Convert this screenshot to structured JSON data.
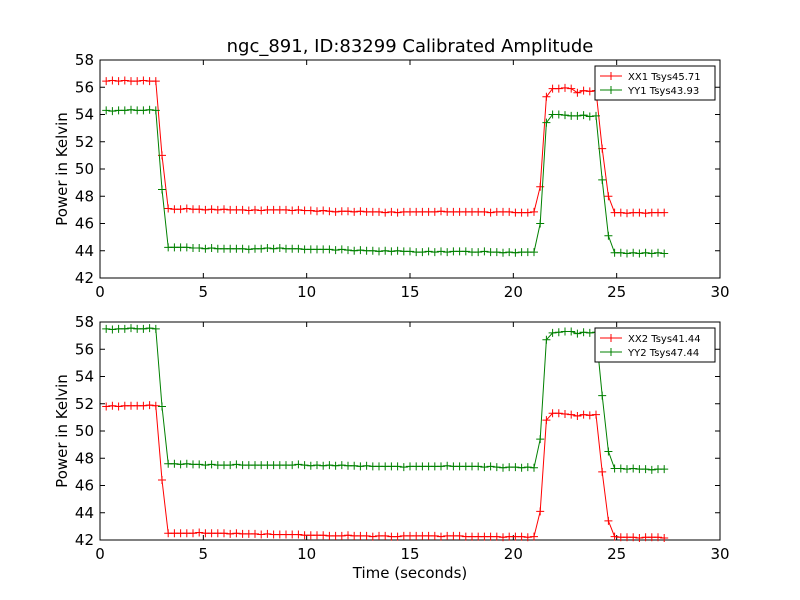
{
  "chart_data": [
    {
      "type": "line",
      "title": "ngc_891, ID:83299 Calibrated Amplitude",
      "xlabel": "",
      "ylabel": "Power in Kelvin",
      "xlim": [
        0,
        30
      ],
      "ylim": [
        42,
        58
      ],
      "xticks": [
        0,
        5,
        10,
        15,
        20,
        25,
        30
      ],
      "yticks": [
        42,
        44,
        46,
        48,
        50,
        52,
        54,
        56,
        58
      ],
      "grid": false,
      "legend_position": "top-right",
      "series": [
        {
          "name": "XX1 Tsys45.71",
          "color": "#ff0000",
          "x": [
            0.3,
            0.6,
            0.9,
            1.2,
            1.5,
            1.8,
            2.1,
            2.4,
            2.7,
            3.0,
            3.3,
            3.6,
            3.9,
            4.2,
            4.5,
            4.8,
            5.1,
            5.4,
            5.7,
            6.0,
            6.3,
            6.6,
            6.9,
            7.2,
            7.5,
            7.8,
            8.1,
            8.4,
            8.7,
            9.0,
            9.3,
            9.6,
            9.9,
            10.2,
            10.5,
            10.8,
            11.1,
            11.4,
            11.7,
            12.0,
            12.3,
            12.6,
            12.9,
            13.2,
            13.5,
            13.8,
            14.1,
            14.4,
            14.7,
            15.0,
            15.3,
            15.6,
            15.9,
            16.2,
            16.5,
            16.8,
            17.1,
            17.4,
            17.7,
            18.0,
            18.3,
            18.6,
            18.9,
            19.2,
            19.5,
            19.8,
            20.1,
            20.4,
            20.7,
            21.0,
            21.3,
            21.6,
            21.9,
            22.2,
            22.5,
            22.8,
            23.1,
            23.4,
            23.7,
            24.0,
            24.3,
            24.6,
            24.9,
            25.2,
            25.5,
            25.8,
            26.1,
            26.4,
            26.7,
            27.0,
            27.3
          ],
          "values": [
            56.45,
            56.5,
            56.45,
            56.5,
            56.45,
            56.45,
            56.5,
            56.45,
            56.45,
            51.0,
            47.1,
            47.05,
            47.05,
            47.1,
            47.05,
            47.05,
            47.0,
            47.05,
            47.0,
            47.05,
            47.0,
            47.0,
            47.0,
            46.95,
            47.0,
            46.95,
            47.0,
            47.0,
            47.0,
            47.0,
            46.95,
            47.0,
            46.95,
            46.95,
            46.9,
            46.95,
            46.9,
            46.85,
            46.9,
            46.9,
            46.85,
            46.9,
            46.85,
            46.85,
            46.85,
            46.8,
            46.85,
            46.8,
            46.85,
            46.85,
            46.85,
            46.85,
            46.85,
            46.85,
            46.9,
            46.85,
            46.85,
            46.85,
            46.85,
            46.85,
            46.85,
            46.85,
            46.8,
            46.85,
            46.85,
            46.85,
            46.8,
            46.8,
            46.8,
            46.85,
            48.7,
            55.3,
            55.9,
            55.9,
            55.95,
            55.9,
            55.6,
            55.75,
            55.7,
            55.75,
            51.5,
            48.0,
            46.8,
            46.8,
            46.75,
            46.8,
            46.8,
            46.75,
            46.8,
            46.8,
            46.8
          ]
        },
        {
          "name": "YY1 Tsys43.93",
          "color": "#008000",
          "x": [
            0.3,
            0.6,
            0.9,
            1.2,
            1.5,
            1.8,
            2.1,
            2.4,
            2.7,
            3.0,
            3.3,
            3.6,
            3.9,
            4.2,
            4.5,
            4.8,
            5.1,
            5.4,
            5.7,
            6.0,
            6.3,
            6.6,
            6.9,
            7.2,
            7.5,
            7.8,
            8.1,
            8.4,
            8.7,
            9.0,
            9.3,
            9.6,
            9.9,
            10.2,
            10.5,
            10.8,
            11.1,
            11.4,
            11.7,
            12.0,
            12.3,
            12.6,
            12.9,
            13.2,
            13.5,
            13.8,
            14.1,
            14.4,
            14.7,
            15.0,
            15.3,
            15.6,
            15.9,
            16.2,
            16.5,
            16.8,
            17.1,
            17.4,
            17.7,
            18.0,
            18.3,
            18.6,
            18.9,
            19.2,
            19.5,
            19.8,
            20.1,
            20.4,
            20.7,
            21.0,
            21.3,
            21.6,
            21.9,
            22.2,
            22.5,
            22.8,
            23.1,
            23.4,
            23.7,
            24.0,
            24.3,
            24.6,
            24.9,
            25.2,
            25.5,
            25.8,
            26.1,
            26.4,
            26.7,
            27.0,
            27.3
          ],
          "values": [
            54.3,
            54.25,
            54.3,
            54.3,
            54.35,
            54.3,
            54.3,
            54.35,
            54.3,
            48.5,
            44.25,
            44.25,
            44.25,
            44.25,
            44.2,
            44.2,
            44.15,
            44.2,
            44.15,
            44.15,
            44.15,
            44.15,
            44.15,
            44.1,
            44.15,
            44.15,
            44.2,
            44.15,
            44.2,
            44.15,
            44.15,
            44.15,
            44.1,
            44.1,
            44.1,
            44.1,
            44.1,
            44.05,
            44.1,
            44.05,
            44.0,
            44.05,
            44.0,
            44.0,
            43.95,
            44.0,
            43.95,
            44.0,
            43.95,
            43.95,
            43.9,
            43.9,
            43.95,
            43.9,
            43.95,
            43.9,
            43.95,
            43.95,
            43.95,
            43.9,
            43.9,
            43.95,
            43.9,
            43.9,
            43.85,
            43.9,
            43.85,
            43.9,
            43.9,
            43.9,
            46.0,
            53.4,
            54.0,
            54.0,
            53.95,
            53.9,
            53.9,
            53.95,
            53.85,
            53.9,
            49.2,
            45.1,
            43.85,
            43.85,
            43.8,
            43.85,
            43.8,
            43.85,
            43.8,
            43.85,
            43.8
          ]
        }
      ]
    },
    {
      "type": "line",
      "title": "",
      "xlabel": "Time (seconds)",
      "ylabel": "Power in Kelvin",
      "xlim": [
        0,
        30
      ],
      "ylim": [
        42,
        58
      ],
      "xticks": [
        0,
        5,
        10,
        15,
        20,
        25,
        30
      ],
      "yticks": [
        42,
        44,
        46,
        48,
        50,
        52,
        54,
        56,
        58
      ],
      "grid": false,
      "legend_position": "top-right",
      "series": [
        {
          "name": "XX2 Tsys41.44",
          "color": "#ff0000",
          "x": [
            0.3,
            0.6,
            0.9,
            1.2,
            1.5,
            1.8,
            2.1,
            2.4,
            2.7,
            3.0,
            3.3,
            3.6,
            3.9,
            4.2,
            4.5,
            4.8,
            5.1,
            5.4,
            5.7,
            6.0,
            6.3,
            6.6,
            6.9,
            7.2,
            7.5,
            7.8,
            8.1,
            8.4,
            8.7,
            9.0,
            9.3,
            9.6,
            9.9,
            10.2,
            10.5,
            10.8,
            11.1,
            11.4,
            11.7,
            12.0,
            12.3,
            12.6,
            12.9,
            13.2,
            13.5,
            13.8,
            14.1,
            14.4,
            14.7,
            15.0,
            15.3,
            15.6,
            15.9,
            16.2,
            16.5,
            16.8,
            17.1,
            17.4,
            17.7,
            18.0,
            18.3,
            18.6,
            18.9,
            19.2,
            19.5,
            19.8,
            20.1,
            20.4,
            20.7,
            21.0,
            21.3,
            21.6,
            21.9,
            22.2,
            22.5,
            22.8,
            23.1,
            23.4,
            23.7,
            24.0,
            24.3,
            24.6,
            24.9,
            25.2,
            25.5,
            25.8,
            26.1,
            26.4,
            26.7,
            27.0,
            27.3
          ],
          "values": [
            51.8,
            51.85,
            51.8,
            51.85,
            51.85,
            51.85,
            51.85,
            51.9,
            51.85,
            46.4,
            42.5,
            42.5,
            42.5,
            42.5,
            42.5,
            42.55,
            42.5,
            42.5,
            42.5,
            42.5,
            42.45,
            42.5,
            42.45,
            42.45,
            42.45,
            42.4,
            42.45,
            42.4,
            42.4,
            42.4,
            42.4,
            42.4,
            42.35,
            42.35,
            42.35,
            42.35,
            42.3,
            42.3,
            42.3,
            42.35,
            42.3,
            42.3,
            42.3,
            42.25,
            42.3,
            42.3,
            42.25,
            42.25,
            42.3,
            42.3,
            42.3,
            42.3,
            42.3,
            42.3,
            42.25,
            42.3,
            42.3,
            42.3,
            42.25,
            42.25,
            42.25,
            42.25,
            42.25,
            42.25,
            42.2,
            42.25,
            42.25,
            42.25,
            42.2,
            42.25,
            44.1,
            50.8,
            51.3,
            51.3,
            51.25,
            51.2,
            51.1,
            51.2,
            51.15,
            51.2,
            47.0,
            43.4,
            42.25,
            42.2,
            42.2,
            42.2,
            42.15,
            42.2,
            42.2,
            42.2,
            42.15
          ]
        },
        {
          "name": "YY2 Tsys47.44",
          "color": "#008000",
          "x": [
            0.3,
            0.6,
            0.9,
            1.2,
            1.5,
            1.8,
            2.1,
            2.4,
            2.7,
            3.0,
            3.3,
            3.6,
            3.9,
            4.2,
            4.5,
            4.8,
            5.1,
            5.4,
            5.7,
            6.0,
            6.3,
            6.6,
            6.9,
            7.2,
            7.5,
            7.8,
            8.1,
            8.4,
            8.7,
            9.0,
            9.3,
            9.6,
            9.9,
            10.2,
            10.5,
            10.8,
            11.1,
            11.4,
            11.7,
            12.0,
            12.3,
            12.6,
            12.9,
            13.2,
            13.5,
            13.8,
            14.1,
            14.4,
            14.7,
            15.0,
            15.3,
            15.6,
            15.9,
            16.2,
            16.5,
            16.8,
            17.1,
            17.4,
            17.7,
            18.0,
            18.3,
            18.6,
            18.9,
            19.2,
            19.5,
            19.8,
            20.1,
            20.4,
            20.7,
            21.0,
            21.3,
            21.6,
            21.9,
            22.2,
            22.5,
            22.8,
            23.1,
            23.4,
            23.7,
            24.0,
            24.3,
            24.6,
            24.9,
            25.2,
            25.5,
            25.8,
            26.1,
            26.4,
            26.7,
            27.0,
            27.3
          ],
          "values": [
            57.5,
            57.45,
            57.5,
            57.5,
            57.55,
            57.5,
            57.5,
            57.55,
            57.5,
            51.8,
            47.6,
            47.6,
            47.55,
            47.6,
            47.55,
            47.55,
            47.5,
            47.55,
            47.5,
            47.5,
            47.5,
            47.55,
            47.5,
            47.5,
            47.5,
            47.5,
            47.5,
            47.5,
            47.5,
            47.5,
            47.5,
            47.55,
            47.5,
            47.45,
            47.5,
            47.45,
            47.5,
            47.45,
            47.5,
            47.45,
            47.45,
            47.4,
            47.45,
            47.4,
            47.4,
            47.4,
            47.4,
            47.4,
            47.35,
            47.4,
            47.4,
            47.4,
            47.4,
            47.4,
            47.4,
            47.45,
            47.4,
            47.4,
            47.4,
            47.4,
            47.4,
            47.35,
            47.4,
            47.35,
            47.3,
            47.35,
            47.35,
            47.3,
            47.35,
            47.3,
            49.4,
            56.7,
            57.2,
            57.25,
            57.3,
            57.3,
            57.15,
            57.25,
            57.2,
            57.25,
            52.6,
            48.5,
            47.25,
            47.25,
            47.2,
            47.25,
            47.2,
            47.2,
            47.15,
            47.2,
            47.2
          ]
        }
      ]
    }
  ]
}
